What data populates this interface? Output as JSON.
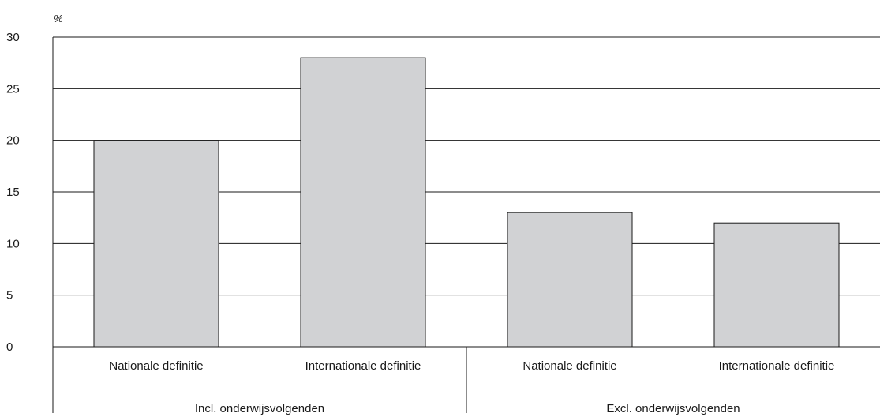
{
  "chart_data": {
    "type": "bar",
    "ylabel": "%",
    "ylim": [
      0,
      30
    ],
    "yticks": [
      0,
      5,
      10,
      15,
      20,
      25,
      30
    ],
    "grid": true,
    "categories": [
      "Nationale definitie",
      "Internationale definitie",
      "Nationale definitie",
      "Internationale definitie"
    ],
    "groups": [
      {
        "label": "Incl. onderwijsvolgenden",
        "categories": [
          "Nationale definitie",
          "Internationale definitie"
        ]
      },
      {
        "label": "Excl. onderwijsvolgenden",
        "categories": [
          "Nationale definitie",
          "Internationale definitie"
        ]
      }
    ],
    "values": [
      20,
      28,
      13,
      12
    ],
    "colors": {
      "bar_fill": "#d1d2d4",
      "bar_stroke": "#1a1a1a",
      "grid": "#1a1a1a"
    }
  }
}
